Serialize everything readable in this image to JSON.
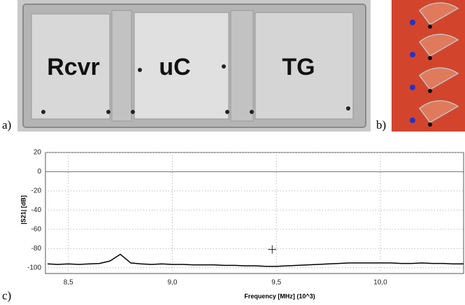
{
  "panel_labels": [
    "a)",
    "b)",
    "c)"
  ],
  "photo_labels": [
    "Rcvr",
    "uC",
    "TG"
  ],
  "chart_data": {
    "type": "line",
    "x_label": "Frequency [MHz] (10^3)",
    "y_label": "|S21| [dB]",
    "xlim": [
      8.39,
      10.4
    ],
    "ylim": [
      -106,
      20
    ],
    "xticks": [
      {
        "value": 8.5,
        "label": "8,5"
      },
      {
        "value": 9.0,
        "label": "9,0"
      },
      {
        "value": 9.5,
        "label": "9,5"
      },
      {
        "value": 10.0,
        "label": "10,0"
      }
    ],
    "yticks": [
      20,
      0,
      -20,
      -40,
      -60,
      -80,
      -100
    ],
    "grid": true,
    "x": [
      8.4,
      8.45,
      8.5,
      8.55,
      8.6,
      8.65,
      8.7,
      8.75,
      8.8,
      8.85,
      8.9,
      8.95,
      9.0,
      9.05,
      9.1,
      9.15,
      9.2,
      9.25,
      9.3,
      9.35,
      9.4,
      9.45,
      9.5,
      9.55,
      9.6,
      9.65,
      9.7,
      9.75,
      9.8,
      9.85,
      9.9,
      9.95,
      10.0,
      10.05,
      10.1,
      10.15,
      10.2,
      10.25,
      10.3,
      10.35,
      10.4
    ],
    "series": [
      {
        "color": "#000000",
        "values": [
          -96,
          -96.5,
          -96,
          -96.5,
          -96,
          -95.5,
          -93,
          -86,
          -95,
          -96,
          -96.5,
          -96,
          -96.5,
          -96.5,
          -97,
          -97,
          -97,
          -97.5,
          -97.5,
          -98,
          -98,
          -98.5,
          -98.5,
          -98,
          -97.5,
          -97,
          -96.5,
          -96,
          -95.5,
          -95,
          -95,
          -95,
          -95,
          -95,
          -95.5,
          -95.5,
          -95,
          -95.5,
          -95.5,
          -96,
          -96
        ]
      }
    ],
    "marker": {
      "x": 9.48,
      "y": -81
    }
  }
}
